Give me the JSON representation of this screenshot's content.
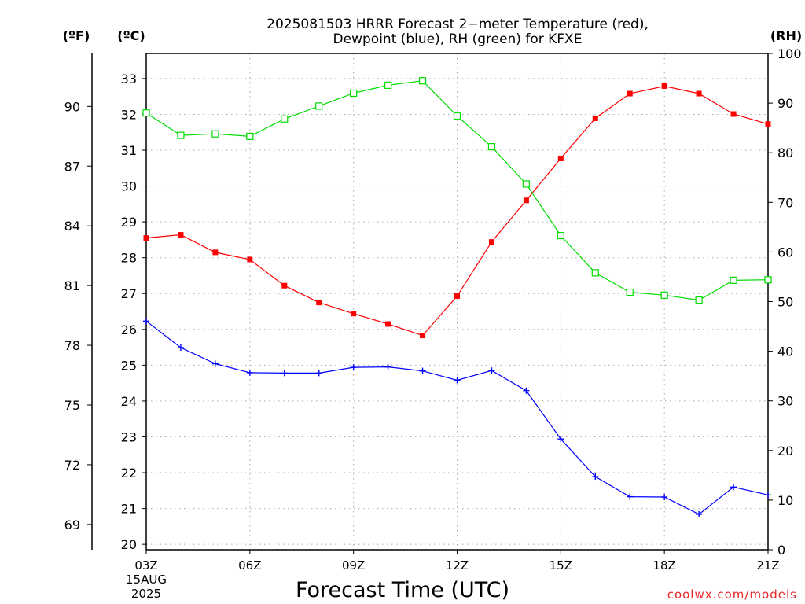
{
  "chart_data": {
    "type": "line",
    "title_line1": "2025081503 HRRR Forecast 2−meter Temperature (red),",
    "title_line2": "Dewpoint (blue), RH (green) for KFXE",
    "xlabel": "Forecast Time (UTC)",
    "unit_f": "(ºF)",
    "unit_c": "(ºC)",
    "unit_rh": "(RH)",
    "date_label_1": "15AUG",
    "date_label_2": "2025",
    "watermark": "coolwx.com/models",
    "x_range": [
      3,
      21
    ],
    "x_ticks": [
      {
        "x": 3,
        "label": "03Z"
      },
      {
        "x": 6,
        "label": "06Z"
      },
      {
        "x": 9,
        "label": "09Z"
      },
      {
        "x": 12,
        "label": "12Z"
      },
      {
        "x": 15,
        "label": "15Z"
      },
      {
        "x": 18,
        "label": "18Z"
      },
      {
        "x": 21,
        "label": "21Z"
      }
    ],
    "ylim_c": [
      19.85,
      33.7
    ],
    "yticks_c": [
      20,
      21,
      22,
      23,
      24,
      25,
      26,
      27,
      28,
      29,
      30,
      31,
      32,
      33
    ],
    "yticks_f": [
      69,
      72,
      75,
      78,
      81,
      84,
      87,
      90
    ],
    "ylim_rh": [
      0,
      100
    ],
    "yticks_rh": [
      0,
      10,
      20,
      30,
      40,
      50,
      60,
      70,
      80,
      90,
      100
    ],
    "grid": true,
    "hours": [
      3,
      4,
      5,
      6,
      7,
      8,
      9,
      10,
      11,
      12,
      13,
      14,
      15,
      16,
      17,
      18,
      19,
      20,
      21
    ],
    "series": [
      {
        "key": "temperature",
        "axis": "c",
        "color": "#ff0000",
        "marker": "filled-square",
        "values": [
          28.55,
          28.64,
          28.15,
          27.95,
          27.22,
          26.75,
          26.44,
          26.15,
          25.83,
          26.93,
          28.44,
          29.6,
          30.77,
          31.89,
          32.58,
          32.79,
          32.58,
          32.01,
          31.73
        ]
      },
      {
        "key": "dewpoint",
        "axis": "c",
        "color": "#0000ff",
        "marker": "plus",
        "values": [
          26.23,
          25.49,
          25.04,
          24.79,
          24.78,
          24.78,
          24.94,
          24.95,
          24.84,
          24.58,
          24.85,
          24.29,
          22.94,
          21.89,
          21.33,
          21.32,
          20.84,
          21.6,
          21.38
        ]
      },
      {
        "key": "rh",
        "axis": "rh",
        "color": "#00dd00",
        "marker": "open-square",
        "values": [
          88,
          83.5,
          83.8,
          83.3,
          86.8,
          89.4,
          92,
          93.6,
          94.5,
          87.4,
          81.2,
          73.7,
          63.3,
          55.8,
          51.9,
          51.3,
          50.3,
          54.3,
          54.4
        ]
      }
    ]
  }
}
